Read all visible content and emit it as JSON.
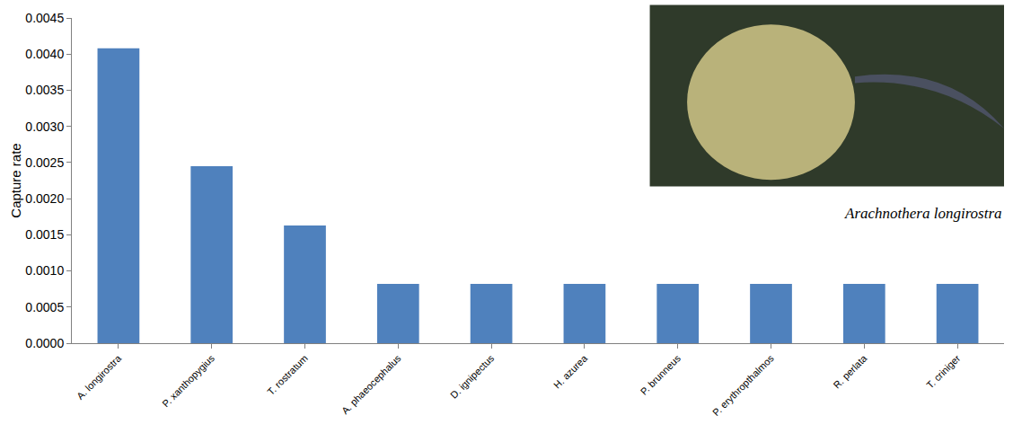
{
  "chart_data": {
    "type": "bar",
    "categories": [
      "A. longirostra",
      "P. xanthopygius",
      "T. rostratum",
      "A. phaeocephalus",
      "D. ignipectus",
      "H. azurea",
      "P. brunneus",
      "P. erythropthalmos",
      "R. perlata",
      "T. criniger"
    ],
    "values": [
      0.00408,
      0.00245,
      0.00163,
      0.00082,
      0.00082,
      0.00082,
      0.00082,
      0.00082,
      0.00082,
      0.00082
    ],
    "color": "#4f81bd",
    "y_label": "Capture rate",
    "ylim": [
      0,
      0.0045
    ],
    "yticks": [
      {
        "value": 0,
        "label": "0.0000"
      },
      0.0005,
      {
        "value": 0.001,
        "label": "0.0010"
      },
      0.0015,
      {
        "value": 0.002,
        "label": "0.0020"
      },
      0.0025,
      {
        "value": 0.003,
        "label": "0.0030"
      },
      0.0035,
      {
        "value": 0.004,
        "label": "0.0040"
      },
      0.0045
    ],
    "grid": false,
    "annotations": [
      {
        "text": "Arachnothera longirostra"
      }
    ]
  }
}
